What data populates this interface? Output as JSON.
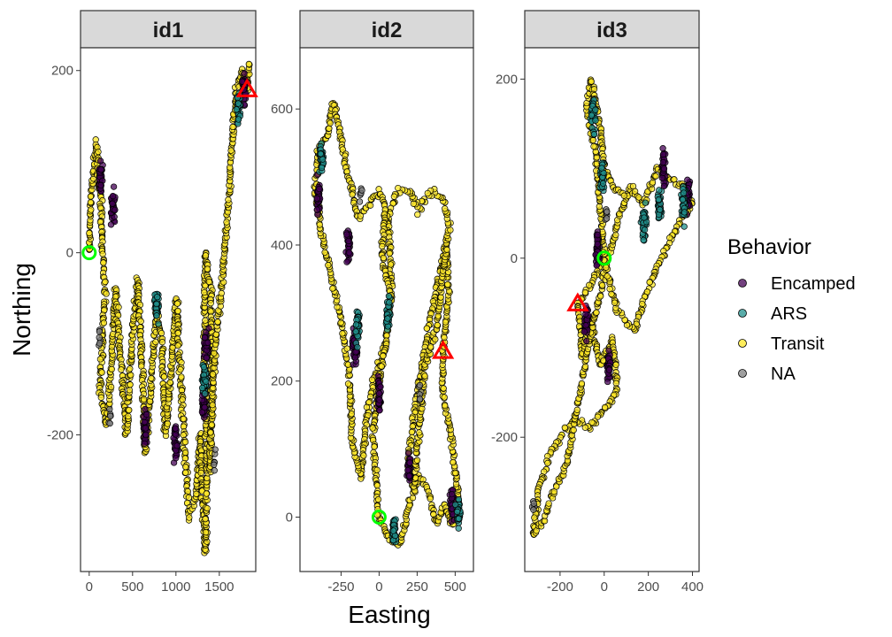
{
  "chart_data": {
    "type": "scatter",
    "xlabel": "Easting",
    "ylabel": "Northing",
    "legend": {
      "title": "Behavior",
      "placement": "right",
      "entries": [
        {
          "label": "Encamped",
          "color": "#440154"
        },
        {
          "label": "ARS",
          "color": "#21908C"
        },
        {
          "label": "Transit",
          "color": "#FDE725"
        },
        {
          "label": "NA",
          "color": "#7F7F7F"
        }
      ]
    },
    "marker_colors": {
      "start": "#00FF00",
      "end": "#FF0000"
    },
    "facets": [
      {
        "label": "id1",
        "xlim": [
          -100,
          1920
        ],
        "ylim": [
          -350,
          225
        ],
        "xticks": [
          0,
          500,
          1000,
          1500
        ],
        "yticks": [
          -200,
          0,
          200
        ],
        "start": [
          0,
          0
        ],
        "end": [
          1820,
          180
        ],
        "track": [
          [
            0,
            0
          ],
          [
            20,
            60
          ],
          [
            80,
            120
          ],
          [
            130,
            60
          ],
          [
            180,
            -50
          ],
          [
            120,
            -150
          ],
          [
            200,
            -190
          ],
          [
            260,
            -120
          ],
          [
            300,
            -40
          ],
          [
            360,
            -110
          ],
          [
            430,
            -200
          ],
          [
            500,
            -90
          ],
          [
            560,
            -30
          ],
          [
            620,
            -150
          ],
          [
            640,
            -220
          ],
          [
            700,
            -160
          ],
          [
            780,
            -60
          ],
          [
            840,
            -100
          ],
          [
            880,
            -200
          ],
          [
            950,
            -120
          ],
          [
            1010,
            -50
          ],
          [
            1060,
            -150
          ],
          [
            1110,
            -230
          ],
          [
            1150,
            -290
          ],
          [
            1230,
            -270
          ],
          [
            1280,
            -200
          ],
          [
            1310,
            -280
          ],
          [
            1340,
            -330
          ],
          [
            1360,
            -230
          ],
          [
            1330,
            -110
          ],
          [
            1340,
            0
          ],
          [
            1400,
            -40
          ],
          [
            1420,
            -150
          ],
          [
            1390,
            -240
          ],
          [
            1440,
            -120
          ],
          [
            1520,
            -40
          ],
          [
            1600,
            50
          ],
          [
            1650,
            120
          ],
          [
            1700,
            180
          ],
          [
            1760,
            200
          ],
          [
            1820,
            180
          ],
          [
            1850,
            210
          ]
        ],
        "clusters": [
          {
            "behavior": "Encamped",
            "x": 130,
            "y": 80
          },
          {
            "behavior": "Encamped",
            "x": 270,
            "y": 50
          },
          {
            "behavior": "Encamped",
            "x": 1350,
            "y": -100
          },
          {
            "behavior": "Encamped",
            "x": 1320,
            "y": -170
          },
          {
            "behavior": "Encamped",
            "x": 1000,
            "y": -210
          },
          {
            "behavior": "Encamped",
            "x": 650,
            "y": -190
          },
          {
            "behavior": "Encamped",
            "x": 1790,
            "y": 180
          },
          {
            "behavior": "ARS",
            "x": 780,
            "y": -60
          },
          {
            "behavior": "ARS",
            "x": 1330,
            "y": -140
          },
          {
            "behavior": "ARS",
            "x": 1720,
            "y": 160
          },
          {
            "behavior": "NA",
            "x": 240,
            "y": -180
          },
          {
            "behavior": "NA",
            "x": 120,
            "y": -90
          },
          {
            "behavior": "NA",
            "x": 1440,
            "y": -230
          }
        ]
      },
      {
        "label": "id2",
        "xlim": [
          -520,
          620
        ],
        "ylim": [
          -80,
          690
        ],
        "xticks": [
          -250,
          0,
          250,
          500
        ],
        "yticks": [
          0,
          200,
          400,
          600
        ],
        "start": [
          0,
          0
        ],
        "end": [
          420,
          245
        ],
        "track": [
          [
            0,
            0
          ],
          [
            60,
            -30
          ],
          [
            140,
            -40
          ],
          [
            200,
            20
          ],
          [
            260,
            60
          ],
          [
            320,
            40
          ],
          [
            380,
            -10
          ],
          [
            430,
            20
          ],
          [
            480,
            -10
          ],
          [
            520,
            30
          ],
          [
            480,
            110
          ],
          [
            420,
            180
          ],
          [
            420,
            245
          ],
          [
            460,
            330
          ],
          [
            440,
            400
          ],
          [
            380,
            340
          ],
          [
            300,
            250
          ],
          [
            230,
            150
          ],
          [
            190,
            80
          ],
          [
            230,
            40
          ],
          [
            260,
            120
          ],
          [
            300,
            220
          ],
          [
            380,
            280
          ],
          [
            420,
            360
          ],
          [
            460,
            430
          ],
          [
            420,
            470
          ],
          [
            340,
            480
          ],
          [
            260,
            450
          ],
          [
            200,
            480
          ],
          [
            120,
            480
          ],
          [
            60,
            440
          ],
          [
            80,
            340
          ],
          [
            40,
            250
          ],
          [
            -40,
            200
          ],
          [
            -80,
            150
          ],
          [
            -120,
            60
          ],
          [
            -170,
            100
          ],
          [
            -200,
            220
          ],
          [
            -260,
            300
          ],
          [
            -320,
            360
          ],
          [
            -380,
            420
          ],
          [
            -420,
            480
          ],
          [
            -400,
            540
          ],
          [
            -340,
            560
          ],
          [
            -300,
            610
          ],
          [
            -260,
            570
          ],
          [
            -200,
            500
          ],
          [
            -140,
            440
          ],
          [
            -60,
            460
          ],
          [
            0,
            480
          ],
          [
            40,
            460
          ],
          [
            20,
            380
          ],
          [
            80,
            320
          ],
          [
            40,
            250
          ],
          [
            -10,
            180
          ],
          [
            -40,
            120
          ],
          [
            -20,
            60
          ],
          [
            0,
            0
          ]
        ],
        "clusters": [
          {
            "behavior": "Encamped",
            "x": -400,
            "y": 470
          },
          {
            "behavior": "Encamped",
            "x": -200,
            "y": 400
          },
          {
            "behavior": "Encamped",
            "x": 0,
            "y": 180
          },
          {
            "behavior": "Encamped",
            "x": 200,
            "y": 70
          },
          {
            "behavior": "Encamped",
            "x": 480,
            "y": 20
          },
          {
            "behavior": "Encamped",
            "x": -160,
            "y": 250
          },
          {
            "behavior": "ARS",
            "x": -380,
            "y": 530
          },
          {
            "behavior": "ARS",
            "x": -140,
            "y": 280
          },
          {
            "behavior": "ARS",
            "x": 60,
            "y": 300
          },
          {
            "behavior": "ARS",
            "x": 100,
            "y": -20
          },
          {
            "behavior": "ARS",
            "x": 520,
            "y": 10
          },
          {
            "behavior": "NA",
            "x": -120,
            "y": 480
          },
          {
            "behavior": "NA",
            "x": 270,
            "y": 180
          }
        ]
      },
      {
        "label": "id3",
        "xlim": [
          -360,
          430
        ],
        "ylim": [
          -350,
          235
        ],
        "xticks": [
          -200,
          0,
          200,
          400
        ],
        "yticks": [
          -200,
          0,
          200
        ],
        "start": [
          0,
          0
        ],
        "end": [
          -120,
          -50
        ],
        "track": [
          [
            0,
            0
          ],
          [
            -60,
            -30
          ],
          [
            -120,
            -50
          ],
          [
            -100,
            -110
          ],
          [
            -60,
            -70
          ],
          [
            -20,
            -120
          ],
          [
            40,
            -90
          ],
          [
            60,
            -150
          ],
          [
            0,
            -170
          ],
          [
            -60,
            -190
          ],
          [
            -130,
            -180
          ],
          [
            -200,
            -200
          ],
          [
            -250,
            -220
          ],
          [
            -300,
            -260
          ],
          [
            -320,
            -310
          ],
          [
            -270,
            -290
          ],
          [
            -230,
            -260
          ],
          [
            -170,
            -230
          ],
          [
            -110,
            -150
          ],
          [
            -50,
            -70
          ],
          [
            0,
            -20
          ],
          [
            60,
            40
          ],
          [
            120,
            80
          ],
          [
            180,
            60
          ],
          [
            240,
            100
          ],
          [
            300,
            90
          ],
          [
            360,
            80
          ],
          [
            400,
            60
          ],
          [
            340,
            40
          ],
          [
            260,
            0
          ],
          [
            190,
            -40
          ],
          [
            140,
            -80
          ],
          [
            60,
            -60
          ],
          [
            0,
            0
          ],
          [
            -20,
            60
          ],
          [
            -40,
            120
          ],
          [
            -80,
            170
          ],
          [
            -60,
            200
          ],
          [
            -20,
            150
          ],
          [
            0,
            100
          ],
          [
            40,
            80
          ],
          [
            100,
            70
          ]
        ],
        "clusters": [
          {
            "behavior": "Encamped",
            "x": -80,
            "y": -70
          },
          {
            "behavior": "Encamped",
            "x": -30,
            "y": 10
          },
          {
            "behavior": "Encamped",
            "x": 270,
            "y": 100
          },
          {
            "behavior": "Encamped",
            "x": 380,
            "y": 70
          },
          {
            "behavior": "Encamped",
            "x": 20,
            "y": -120
          },
          {
            "behavior": "ARS",
            "x": -50,
            "y": 160
          },
          {
            "behavior": "ARS",
            "x": 250,
            "y": 60
          },
          {
            "behavior": "ARS",
            "x": 360,
            "y": 60
          },
          {
            "behavior": "ARS",
            "x": -10,
            "y": 90
          },
          {
            "behavior": "ARS",
            "x": 180,
            "y": 40
          },
          {
            "behavior": "NA",
            "x": -320,
            "y": -280
          },
          {
            "behavior": "NA",
            "x": 10,
            "y": 50
          }
        ]
      }
    ]
  }
}
